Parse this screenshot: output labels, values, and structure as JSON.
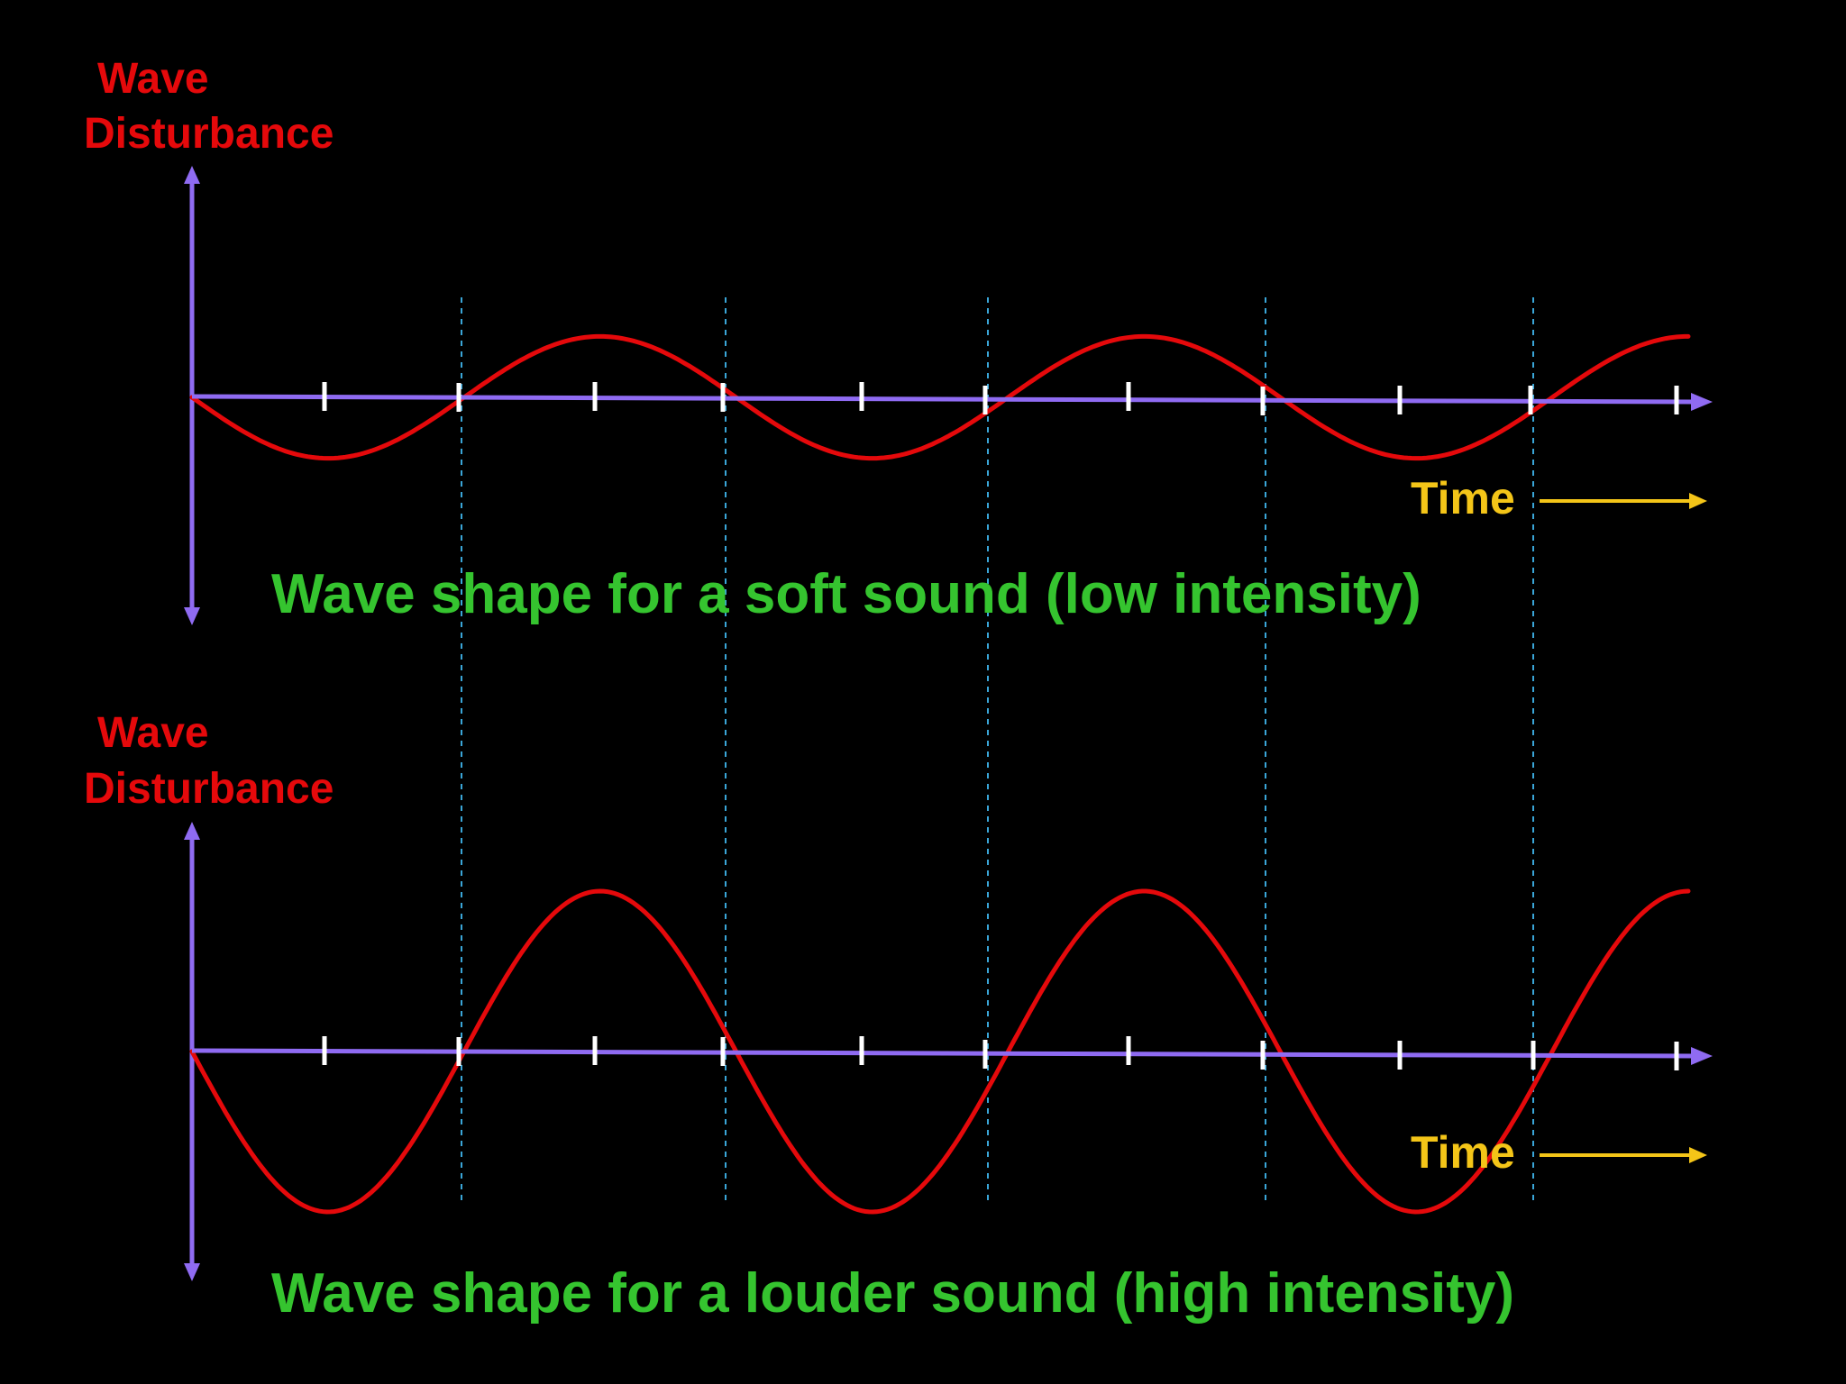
{
  "colors": {
    "background": "#000000",
    "axis": "#8f6bf2",
    "wave": "#e5090b",
    "tick": "#ffffff",
    "guide": "#3aa6d8",
    "time_label": "#f4c518",
    "caption": "#35c42f",
    "y_label": "#e5090b"
  },
  "panels": [
    {
      "id": "soft",
      "y_label_line1": "Wave",
      "y_label_line2": "Disturbance",
      "time_label": "Time",
      "caption": "Wave shape for a soft sound (low intensity)",
      "amplitude": "low",
      "relative_amplitude": 0.38,
      "cycles": 2.75
    },
    {
      "id": "loud",
      "y_label_line1": "Wave",
      "y_label_line2": "Disturbance",
      "time_label": "Time",
      "caption": "Wave shape for a louder sound (high intensity)",
      "amplitude": "high",
      "relative_amplitude": 1.0,
      "cycles": 2.75
    }
  ],
  "tick_count": 11,
  "guide_line_count": 6,
  "icons": {
    "y_axis": "double-headed-arrow",
    "x_axis": "arrow-right",
    "time": "arrow-right"
  }
}
